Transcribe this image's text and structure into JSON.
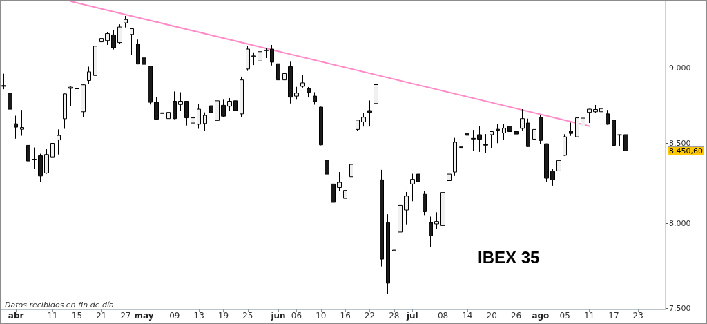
{
  "chart_data": {
    "type": "candlestick",
    "title": "IBEX 35",
    "annotations": [
      "Datos recibidos en fin de día",
      "8.450,60"
    ],
    "categories": [
      null,
      null,
      "abr",
      null,
      null,
      null,
      null,
      null,
      "11",
      null,
      null,
      null,
      "15",
      null,
      null,
      null,
      "21",
      null,
      null,
      null,
      "27",
      null,
      null,
      "may",
      null,
      null,
      null,
      null,
      "09",
      null,
      null,
      null,
      "13",
      null,
      null,
      null,
      "19",
      null,
      null,
      null,
      "25",
      null,
      null,
      null,
      null,
      "jun",
      null,
      null,
      "06",
      null,
      null,
      null,
      "10",
      null,
      null,
      null,
      "16",
      null,
      null,
      null,
      "22",
      null,
      null,
      null,
      "28",
      null,
      null,
      "jul",
      null,
      null,
      null,
      null,
      "08",
      null,
      null,
      null,
      "14",
      null,
      null,
      null,
      "20",
      null,
      null,
      null,
      "26",
      null,
      null,
      null,
      "ago",
      null,
      null,
      null,
      "05",
      null,
      null,
      null,
      "11",
      null,
      null,
      null,
      "17",
      null,
      null,
      null,
      "23",
      null,
      null,
      null,
      null
    ],
    "ohlc": [
      [
        8880,
        8960,
        8855,
        8875
      ],
      [
        8829,
        8831,
        8699,
        8722
      ],
      [
        8626,
        8679,
        8529,
        8604
      ],
      [
        8590,
        8717,
        8548,
        8602
      ],
      [
        8486,
        8493,
        8378,
        8386
      ],
      [
        8397,
        8472,
        8337,
        8393
      ],
      [
        8419,
        8432,
        8255,
        8291
      ],
      [
        8310,
        8461,
        8305,
        8427
      ],
      [
        8412,
        8566,
        8341,
        8499
      ],
      [
        8521,
        8589,
        8427,
        8550
      ],
      [
        8659,
        8826,
        8593,
        8824
      ],
      [
        8861,
        8873,
        8742,
        8869
      ],
      [
        8860,
        8889,
        8809,
        8858
      ],
      [
        8705,
        8891,
        8672,
        8885
      ],
      [
        8914,
        9008,
        8891,
        8973
      ],
      [
        8948,
        9162,
        8937,
        9149
      ],
      [
        9179,
        9223,
        9123,
        9203
      ],
      [
        9188,
        9247,
        9158,
        9237
      ],
      [
        9228,
        9260,
        9126,
        9139
      ],
      [
        9174,
        9302,
        9163,
        9283
      ],
      [
        9312,
        9362,
        9280,
        9336
      ],
      [
        9231,
        9272,
        9087,
        9271
      ],
      [
        9163,
        9195,
        9024,
        9026
      ],
      [
        9068,
        9093,
        8981,
        9024
      ],
      [
        9012,
        9013,
        8753,
        8768
      ],
      [
        8768,
        8805,
        8650,
        8656
      ],
      [
        8698,
        8792,
        8656,
        8694
      ],
      [
        8660,
        8775,
        8563,
        8701
      ],
      [
        8775,
        8840,
        8656,
        8660
      ],
      [
        8753,
        8835,
        8709,
        8775
      ],
      [
        8775,
        8777,
        8615,
        8665
      ],
      [
        8631,
        8789,
        8582,
        8665
      ],
      [
        8623,
        8757,
        8593,
        8722
      ],
      [
        8628,
        8701,
        8579,
        8681
      ],
      [
        8745,
        8830,
        8648,
        8699
      ],
      [
        8648,
        8796,
        8629,
        8778
      ],
      [
        8748,
        8785,
        8669,
        8676
      ],
      [
        8742,
        8796,
        8713,
        8775
      ],
      [
        8778,
        8809,
        8676,
        8713
      ],
      [
        8691,
        8940,
        8672,
        8918
      ],
      [
        8992,
        9153,
        8979,
        9129
      ],
      [
        9078,
        9106,
        9019,
        9082
      ],
      [
        9047,
        9129,
        9031,
        9111
      ],
      [
        9118,
        9135,
        9067,
        9122
      ],
      [
        9129,
        9158,
        9016,
        9039
      ],
      [
        9028,
        9042,
        8880,
        8918
      ],
      [
        8918,
        9058,
        8909,
        8961
      ],
      [
        9008,
        9042,
        8760,
        8802
      ],
      [
        8809,
        8871,
        8785,
        8829
      ],
      [
        8875,
        8950,
        8866,
        8898
      ],
      [
        8860,
        8870,
        8800,
        8834
      ],
      [
        8809,
        8835,
        8752,
        8773
      ],
      [
        8736,
        8738,
        8486,
        8489
      ],
      [
        8389,
        8427,
        8291,
        8303
      ],
      [
        8241,
        8270,
        8125,
        8127
      ],
      [
        8219,
        8316,
        8195,
        8251
      ],
      [
        8152,
        8224,
        8108,
        8201
      ],
      [
        8287,
        8430,
        8277,
        8364
      ],
      [
        8589,
        8652,
        8579,
        8650
      ],
      [
        8638,
        8699,
        8608,
        8669
      ],
      [
        8713,
        8780,
        8608,
        8701
      ],
      [
        8760,
        8917,
        8683,
        8886
      ],
      [
        8267,
        8330,
        7742,
        7785
      ],
      [
        8003,
        8054,
        7580,
        7644
      ],
      [
        7834,
        7919,
        7792,
        7838
      ],
      [
        7946,
        8110,
        7937,
        8108
      ],
      [
        8080,
        8191,
        7993,
        8166
      ],
      [
        8241,
        8305,
        8134,
        8270
      ],
      [
        8303,
        8330,
        8230,
        8255
      ],
      [
        8177,
        8198,
        8049,
        8070
      ],
      [
        8004,
        8040,
        7857,
        7923
      ],
      [
        7996,
        8066,
        7964,
        8010
      ],
      [
        7986,
        8241,
        7961,
        8188
      ],
      [
        8262,
        8320,
        8166,
        8303
      ],
      [
        8316,
        8534,
        8291,
        8506
      ],
      [
        8472,
        8583,
        8426,
        8476
      ],
      [
        8563,
        8596,
        8454,
        8551
      ],
      [
        8531,
        8586,
        8449,
        8527
      ],
      [
        8555,
        8612,
        8444,
        8526
      ],
      [
        8491,
        8559,
        8437,
        8487
      ],
      [
        8555,
        8578,
        8470,
        8575
      ],
      [
        8590,
        8623,
        8500,
        8584
      ],
      [
        8566,
        8623,
        8521,
        8597
      ],
      [
        8608,
        8650,
        8537,
        8575
      ],
      [
        8575,
        8586,
        8486,
        8559
      ],
      [
        8596,
        8722,
        8582,
        8660
      ],
      [
        8631,
        8660,
        8476,
        8478
      ],
      [
        8526,
        8623,
        8506,
        8589
      ],
      [
        8669,
        8683,
        8496,
        8518
      ],
      [
        8496,
        8498,
        8255,
        8277
      ],
      [
        8320,
        8334,
        8230,
        8267
      ],
      [
        8323,
        8427,
        8320,
        8389
      ],
      [
        8422,
        8558,
        8419,
        8541
      ],
      [
        8579,
        8634,
        8547,
        8563
      ],
      [
        8541,
        8673,
        8530,
        8665
      ],
      [
        8611,
        8691,
        8601,
        8663
      ],
      [
        8701,
        8724,
        8631,
        8722
      ],
      [
        8705,
        8750,
        8696,
        8720
      ],
      [
        8705,
        8757,
        8691,
        8726
      ],
      [
        8691,
        8717,
        8620,
        8623
      ],
      [
        8650,
        8653,
        8484,
        8486
      ],
      [
        8555,
        8556,
        8480,
        8552
      ],
      [
        8555,
        8556,
        8399,
        8450.6
      ],
      null,
      null,
      null,
      null,
      null,
      null
    ],
    "series": [
      {
        "type": "line",
        "color": "#ff8ac8",
        "marker": "none",
        "values": [
          null,
          null,
          null,
          null,
          null,
          null,
          null,
          null,
          null,
          null,
          null,
          9465,
          null,
          null,
          null,
          null,
          null,
          null,
          null,
          null,
          null,
          null,
          null,
          null,
          null,
          null,
          null,
          null,
          null,
          null,
          null,
          null,
          null,
          null,
          null,
          null,
          null,
          null,
          null,
          null,
          null,
          null,
          null,
          null,
          null,
          null,
          null,
          null,
          null,
          null,
          null,
          null,
          null,
          null,
          null,
          null,
          null,
          null,
          null,
          null,
          null,
          null,
          null,
          null,
          null,
          null,
          null,
          null,
          null,
          null,
          null,
          null,
          null,
          null,
          null,
          null,
          null,
          null,
          null,
          null,
          null,
          null,
          null,
          null,
          null,
          null,
          null,
          null,
          null,
          null,
          null,
          null,
          null,
          null,
          null,
          null,
          8611,
          null,
          null,
          null,
          null,
          null,
          null,
          null,
          null,
          null,
          null,
          null,
          null
        ]
      }
    ],
    "log": true,
    "ylim": [
      7493,
      9470
    ],
    "yticks": [
      {
        "value": 7500,
        "label": "7.500"
      },
      {
        "value": 8000,
        "label": "8.000"
      },
      {
        "value": 8500,
        "label": "8.500"
      },
      {
        "value": 9000,
        "label": "9.000"
      }
    ]
  }
}
